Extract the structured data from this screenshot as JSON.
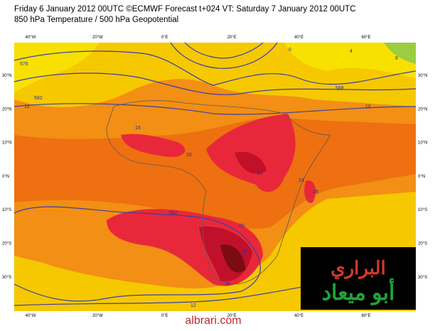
{
  "header": {
    "line1": "Friday 6 January 2012 00UTC ©ECMWF Forecast t+024 VT: Saturday 7 January 2012 00UTC",
    "line2": "850 hPa Temperature / 500 hPa Geopotential"
  },
  "lon_labels": [
    "40°W",
    "20°W",
    "0°E",
    "20°E",
    "40°E",
    "60°E"
  ],
  "lat_labels": [
    "30°N",
    "20°N",
    "10°N",
    "0°N",
    "10°S",
    "20°S",
    "30°S"
  ],
  "contour_labels": [
    "576",
    "582",
    "588",
    "12",
    "16",
    "20",
    "24",
    "28",
    "0",
    "4",
    "8",
    "16",
    "20",
    "24",
    "28",
    "582",
    "12",
    "16"
  ],
  "logo": {
    "line1": "البراري",
    "line2": "أبو ميعاد"
  },
  "footer": "albrari.com"
}
